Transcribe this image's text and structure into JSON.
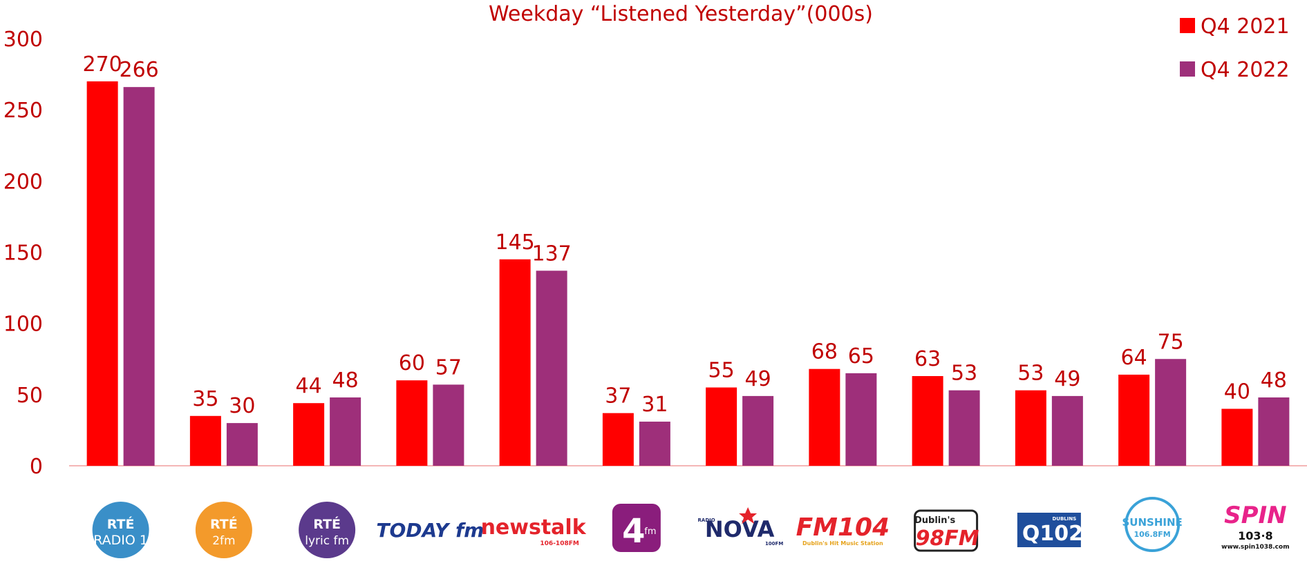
{
  "chart_data": {
    "type": "bar",
    "title": "Weekday “Listened Yesterday”(000s)",
    "xlabel": "",
    "ylabel": "",
    "ylim": [
      0,
      300
    ],
    "yticks": [
      0,
      50,
      100,
      150,
      200,
      250,
      300
    ],
    "grid": false,
    "legend_position": "top-right",
    "categories": [
      "RTÉ Radio 1",
      "RTÉ 2fm",
      "RTÉ lyric fm",
      "Today fm",
      "newstalk 106-108fm",
      "4fm",
      "Radio Nova 100FM",
      "FM104",
      "Dublin's 98FM",
      "Dublin's Q102",
      "Sunshine 106.8FM",
      "SPIN 103.8"
    ],
    "series": [
      {
        "name": "Q4 2021",
        "color": "#ff0000",
        "values": [
          270,
          35,
          44,
          60,
          145,
          37,
          55,
          68,
          63,
          53,
          64,
          40
        ]
      },
      {
        "name": "Q4 2022",
        "color": "#9e2f7a",
        "values": [
          266,
          30,
          48,
          57,
          137,
          31,
          49,
          65,
          53,
          49,
          75,
          48
        ]
      }
    ]
  },
  "logos": [
    {
      "icon": "rte-radio1-logo-icon",
      "text1": "RTÉ",
      "text2": "RADIO 1",
      "color": "#3a8fc8"
    },
    {
      "icon": "rte-2fm-logo-icon",
      "text1": "RTÉ",
      "text2": "2fm",
      "color": "#f39a2b"
    },
    {
      "icon": "rte-lyric-fm-logo-icon",
      "text1": "RTÉ",
      "text2": "lyric fm",
      "color": "#5b3a8c"
    },
    {
      "icon": "today-fm-logo-icon",
      "text1": "TODAY fm",
      "color": "#1d3a8f"
    },
    {
      "icon": "newstalk-logo-icon",
      "text1": "newstalk",
      "text2": "106-108FM",
      "color": "#e4232b"
    },
    {
      "icon": "4fm-logo-icon",
      "text1": "4",
      "text2": "fm",
      "color": "#8a1d7c"
    },
    {
      "icon": "radio-nova-logo-icon",
      "text1": "NOVA",
      "text2": "RADIO 100FM",
      "color": "#1f2a6b"
    },
    {
      "icon": "fm104-logo-icon",
      "text1": "FM104",
      "text2": "Dublin's Hit Music Station",
      "color": "#e4232b"
    },
    {
      "icon": "dublins-98fm-logo-icon",
      "text1": "Dublin's",
      "text2": "98FM",
      "color": "#e4232b"
    },
    {
      "icon": "q102-logo-icon",
      "text1": "Q102",
      "text2": "DUBLINS",
      "color": "#1f4e9c"
    },
    {
      "icon": "sunshine-logo-icon",
      "text1": "SUNSHINE",
      "text2": "106.8FM",
      "color": "#3aa2d8"
    },
    {
      "icon": "spin-logo-icon",
      "text1": "SPIN",
      "text2": "103·8",
      "text3": "www.spin1038.com",
      "color": "#e8238a"
    }
  ]
}
